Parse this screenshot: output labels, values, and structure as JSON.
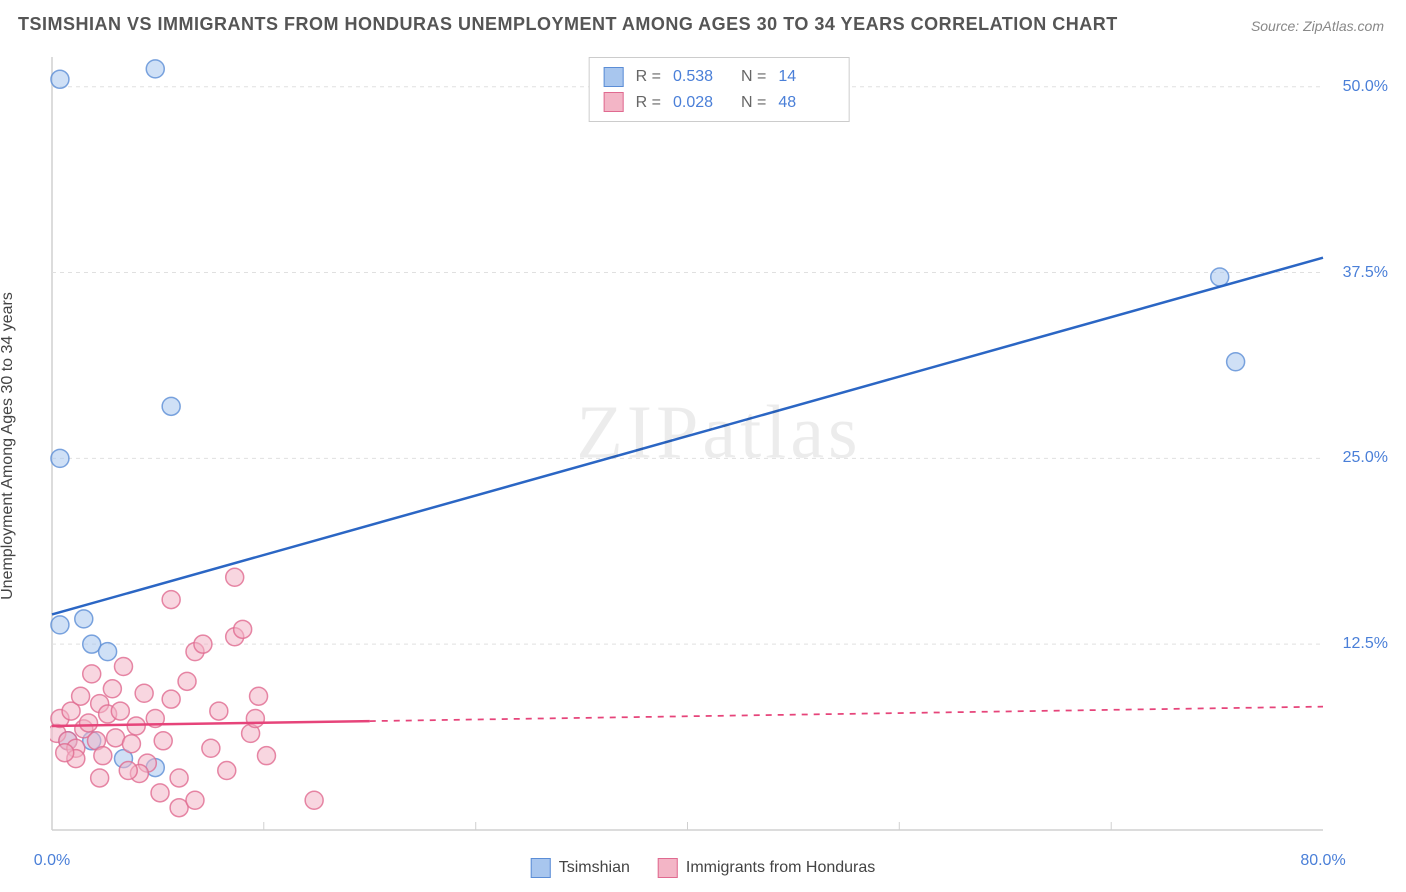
{
  "title": "TSIMSHIAN VS IMMIGRANTS FROM HONDURAS UNEMPLOYMENT AMONG AGES 30 TO 34 YEARS CORRELATION CHART",
  "source": "Source: ZipAtlas.com",
  "watermark": "ZIPatlas",
  "y_axis_label": "Unemployment Among Ages 30 to 34 years",
  "chart": {
    "type": "scatter",
    "background_color": "#ffffff",
    "grid_color": "#e0e0e0",
    "border_color": "#d0d0d0",
    "xlim": [
      0,
      80
    ],
    "ylim": [
      0,
      52
    ],
    "x_ticks": [
      {
        "v": 0,
        "label": "0.0%",
        "color": "#4a7fd8"
      },
      {
        "v": 80,
        "label": "80.0%",
        "color": "#4a7fd8"
      }
    ],
    "y_ticks": [
      {
        "v": 12.5,
        "label": "12.5%",
        "color": "#4a7fd8"
      },
      {
        "v": 25.0,
        "label": "25.0%",
        "color": "#4a7fd8"
      },
      {
        "v": 37.5,
        "label": "37.5%",
        "color": "#4a7fd8"
      },
      {
        "v": 50.0,
        "label": "50.0%",
        "color": "#4a7fd8"
      }
    ],
    "x_grid_minor": [
      13.33,
      26.67,
      40,
      53.33,
      66.67
    ],
    "series": [
      {
        "name": "Tsimshian",
        "marker_fill": "#a8c6ee",
        "marker_stroke": "#5b8dd6",
        "marker_opacity": 0.55,
        "marker_r": 9,
        "line_color": "#2b66c4",
        "line_width": 2.5,
        "trend": {
          "x1": 0,
          "y1": 14.5,
          "x2": 80,
          "y2": 38.5,
          "solid_until_x": 80
        },
        "R": "0.538",
        "N": "14",
        "points": [
          [
            0.5,
            50.5
          ],
          [
            0.5,
            13.8
          ],
          [
            2.0,
            14.2
          ],
          [
            2.5,
            12.5
          ],
          [
            3.5,
            12.0
          ],
          [
            6.5,
            51.2
          ],
          [
            7.5,
            28.5
          ],
          [
            0.5,
            25.0
          ],
          [
            4.5,
            4.8
          ],
          [
            6.5,
            4.2
          ],
          [
            2.5,
            6.0
          ],
          [
            73.5,
            37.2
          ],
          [
            74.5,
            31.5
          ],
          [
            1.0,
            6.0
          ]
        ]
      },
      {
        "name": "Immigrants from Honduras",
        "marker_fill": "#f3b5c6",
        "marker_stroke": "#e06a90",
        "marker_opacity": 0.55,
        "marker_r": 9,
        "line_color": "#e6447a",
        "line_width": 2.5,
        "trend": {
          "x1": 0,
          "y1": 7.0,
          "x2": 80,
          "y2": 8.3,
          "solid_until_x": 20
        },
        "R": "0.028",
        "N": "48",
        "points": [
          [
            0.3,
            6.5
          ],
          [
            0.5,
            7.5
          ],
          [
            1.0,
            6.0
          ],
          [
            1.2,
            8.0
          ],
          [
            1.5,
            5.5
          ],
          [
            1.8,
            9.0
          ],
          [
            2.0,
            6.8
          ],
          [
            2.3,
            7.2
          ],
          [
            2.5,
            10.5
          ],
          [
            2.8,
            6.0
          ],
          [
            3.0,
            8.5
          ],
          [
            3.2,
            5.0
          ],
          [
            3.5,
            7.8
          ],
          [
            3.8,
            9.5
          ],
          [
            4.0,
            6.2
          ],
          [
            4.3,
            8.0
          ],
          [
            4.5,
            11.0
          ],
          [
            5.0,
            5.8
          ],
          [
            5.3,
            7.0
          ],
          [
            5.8,
            9.2
          ],
          [
            6.0,
            4.5
          ],
          [
            6.5,
            7.5
          ],
          [
            7.0,
            6.0
          ],
          [
            7.5,
            8.8
          ],
          [
            8.0,
            3.5
          ],
          [
            8.5,
            10.0
          ],
          [
            9.0,
            12.0
          ],
          [
            9.5,
            12.5
          ],
          [
            10.0,
            5.5
          ],
          [
            10.5,
            8.0
          ],
          [
            11.0,
            4.0
          ],
          [
            11.5,
            13.0
          ],
          [
            12.0,
            13.5
          ],
          [
            12.5,
            6.5
          ],
          [
            13.0,
            9.0
          ],
          [
            13.5,
            5.0
          ],
          [
            8.0,
            1.5
          ],
          [
            9.0,
            2.0
          ],
          [
            11.5,
            17.0
          ],
          [
            7.5,
            15.5
          ],
          [
            5.5,
            3.8
          ],
          [
            6.8,
            2.5
          ],
          [
            16.5,
            2.0
          ],
          [
            12.8,
            7.5
          ],
          [
            4.8,
            4.0
          ],
          [
            3.0,
            3.5
          ],
          [
            1.5,
            4.8
          ],
          [
            0.8,
            5.2
          ]
        ]
      }
    ]
  },
  "legend_top": {
    "r_label": "R =",
    "n_label": "N =",
    "value_color": "#4a7fd8"
  },
  "legend_bottom": [
    {
      "label": "Tsimshian",
      "fill": "#a8c6ee",
      "stroke": "#5b8dd6"
    },
    {
      "label": "Immigrants from Honduras",
      "fill": "#f3b5c6",
      "stroke": "#e06a90"
    }
  ]
}
